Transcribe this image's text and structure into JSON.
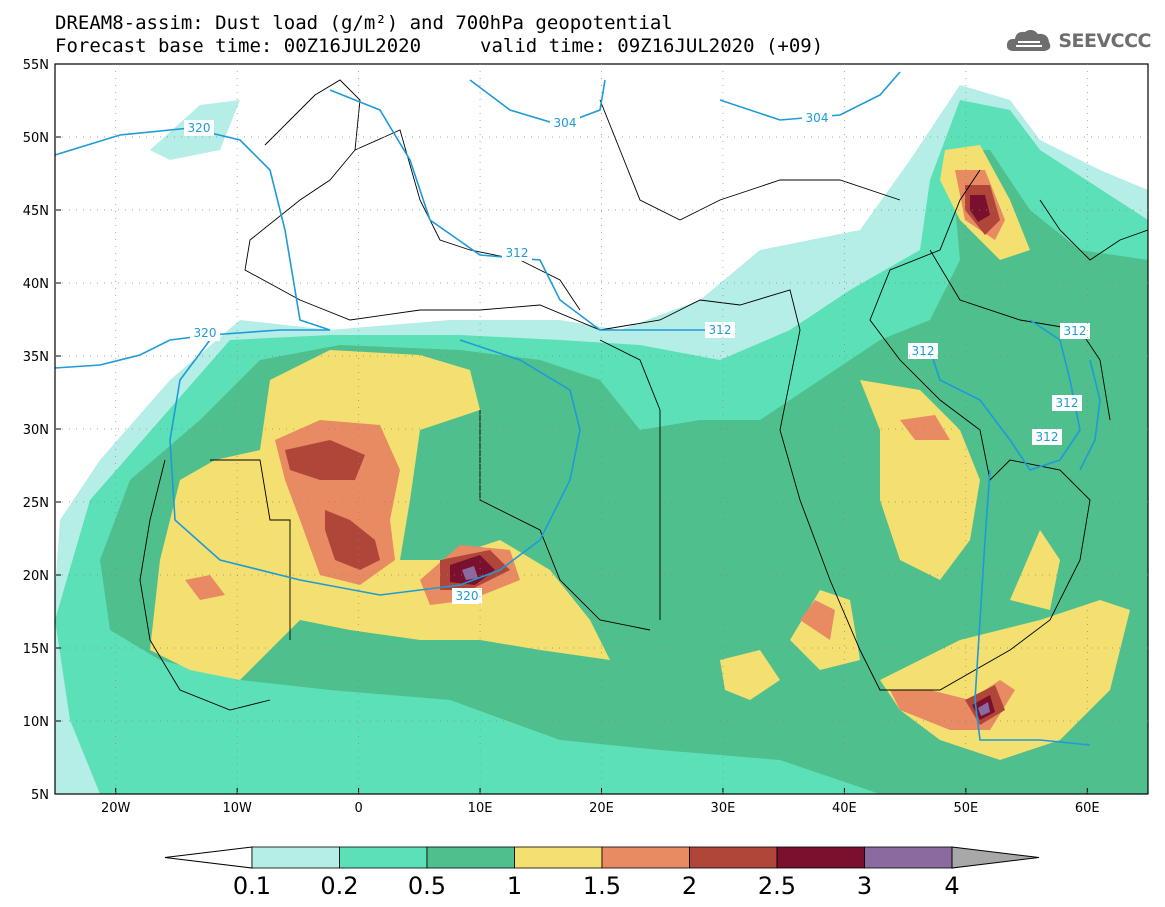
{
  "header": {
    "title_line1": "DREAM8-assim: Dust load (g/m²) and 700hPa geopotential",
    "title_line2": "Forecast base time: 00Z16JUL2020",
    "valid_time": "valid time: 09Z16JUL2020 (+09)"
  },
  "logo": {
    "text": "SEEVCCC",
    "icon": "cloud-icon"
  },
  "axes": {
    "lat_labels": [
      "55N",
      "50N",
      "45N",
      "40N",
      "35N",
      "30N",
      "25N",
      "20N",
      "15N",
      "10N",
      "5N"
    ],
    "lon_labels": [
      "20W",
      "10W",
      "0",
      "10E",
      "20E",
      "30E",
      "40E",
      "50E",
      "60E"
    ],
    "lat_values": [
      55,
      50,
      45,
      40,
      35,
      30,
      25,
      20,
      15,
      10,
      5
    ],
    "lon_values": [
      -20,
      -10,
      0,
      10,
      20,
      30,
      40,
      50,
      60
    ],
    "lon_range": [
      -25,
      65
    ],
    "lat_range": [
      5,
      55
    ]
  },
  "colorbar": {
    "labels": [
      "0.1",
      "0.2",
      "0.5",
      "1",
      "1.5",
      "2",
      "2.5",
      "3",
      "4"
    ],
    "colors": [
      "#ffffff",
      "#b5eee6",
      "#5ce0b8",
      "#4fbf8e",
      "#f3e070",
      "#e88a62",
      "#b0463a",
      "#7a0f2e",
      "#8b6aa0",
      "#a8a8a8"
    ]
  },
  "contours": {
    "color": "#1e9bd7",
    "labels": [
      "320",
      "304",
      "304",
      "312",
      "320",
      "312",
      "312",
      "312",
      "312",
      "312",
      "320"
    ]
  }
}
